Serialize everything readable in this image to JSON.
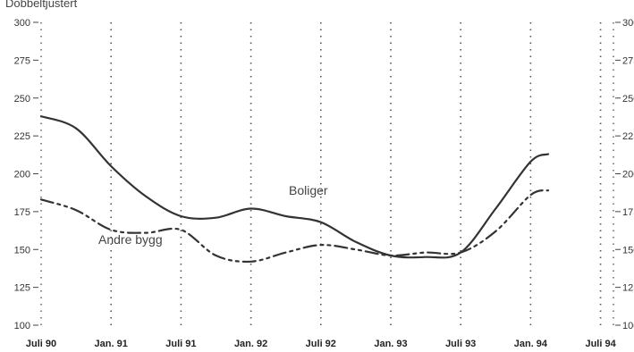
{
  "chart_data": {
    "type": "line",
    "unit_label": "Dobbeltjustert",
    "categories": [
      "Juli 90",
      "Jan. 91",
      "Juli 91",
      "Jan. 92",
      "Juli 92",
      "Jan. 93",
      "Juli 93",
      "Jan. 94",
      "Juli 94"
    ],
    "ylim": [
      100,
      300
    ],
    "yticks": [
      100,
      125,
      150,
      175,
      200,
      225,
      250,
      275,
      300
    ],
    "grid": "vertical dotted",
    "series": [
      {
        "name": "Boliger",
        "color": "#333333",
        "style": "solid",
        "x": [
          0,
          0.5,
          1,
          1.5,
          2,
          2.5,
          3,
          3.5,
          4,
          4.5,
          5,
          5.5,
          6,
          6.5,
          7,
          7.25
        ],
        "values": [
          238,
          230,
          205,
          185,
          172,
          171,
          177,
          172,
          168,
          155,
          146,
          145,
          148,
          177,
          208,
          213
        ]
      },
      {
        "name": "Andre bygg",
        "color": "#333333",
        "style": "dashdot",
        "x": [
          0,
          0.5,
          1,
          1.5,
          2,
          2.5,
          3,
          3.5,
          4,
          4.5,
          5,
          5.5,
          6,
          6.5,
          7,
          7.25
        ],
        "values": [
          183,
          176,
          163,
          161,
          163,
          146,
          142,
          148,
          153,
          150,
          146,
          148,
          148,
          162,
          186,
          189
        ]
      }
    ]
  }
}
